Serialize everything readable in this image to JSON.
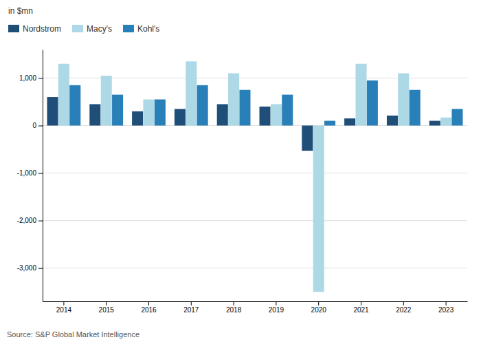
{
  "chart_data": {
    "type": "bar",
    "y_label": "in $mn",
    "categories": [
      "2014",
      "2015",
      "2016",
      "2017",
      "2018",
      "2019",
      "2020",
      "2021",
      "2022",
      "2023"
    ],
    "series": [
      {
        "name": "Nordstrom",
        "color": "#1f4e79",
        "values": [
          600,
          450,
          300,
          350,
          450,
          400,
          -530,
          150,
          210,
          100
        ]
      },
      {
        "name": "Macy's",
        "color": "#add8e6",
        "values": [
          1300,
          1050,
          550,
          1350,
          1100,
          450,
          -3500,
          1300,
          1100,
          170
        ]
      },
      {
        "name": "Kohl's",
        "color": "#2980b9",
        "values": [
          850,
          650,
          550,
          850,
          750,
          650,
          100,
          950,
          750,
          350
        ]
      }
    ],
    "ylim": [
      -3700,
      1600
    ],
    "yticks": [
      {
        "value": -3000,
        "label": "-3,000"
      },
      {
        "value": -2000,
        "label": "-2,000"
      },
      {
        "value": -1000,
        "label": "-1,000"
      },
      0,
      {
        "value": 1000,
        "label": "1,000"
      }
    ],
    "grid": true,
    "legend": "top-left",
    "annotations": [
      {
        "text": "Source: S&P Global Market Intelligence"
      }
    ]
  }
}
